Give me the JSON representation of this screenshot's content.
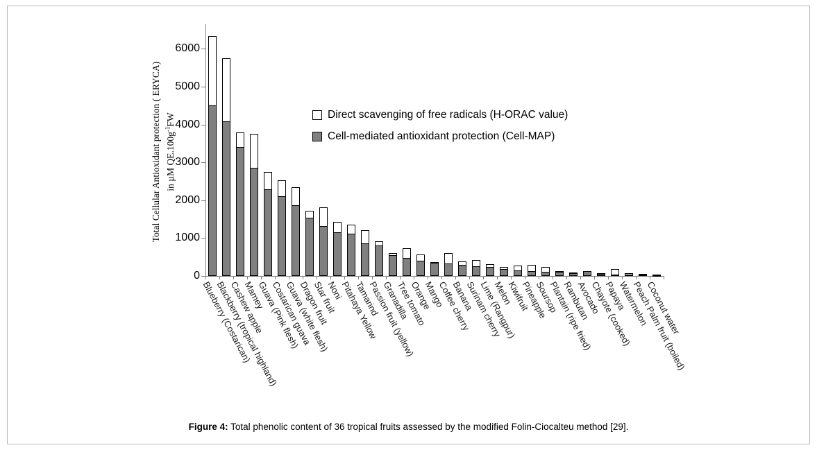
{
  "figure": {
    "caption_label": "Figure 4:",
    "caption_text": " Total phenolic content of 36 tropical fruits assessed by the modified Folin-Ciocalteu method [29]."
  },
  "colors": {
    "axis": "#7f7f7f",
    "bar_border": "#000000",
    "cellmap_fill": "#808080",
    "horac_fill": "#ffffff",
    "frame_border": "#b7b7b7"
  },
  "chart_data": {
    "type": "bar",
    "stacked": true,
    "grid": false,
    "legend_position": "inside-upper-middle",
    "ylabel_line1": "Total Cellular Antioxidant protection ( ERYCA)",
    "ylabel_line2_prefix": "in µM QE.100g",
    "ylabel_line2_sup": "-1",
    "ylabel_line2_suffix": "FW",
    "ylim": [
      0,
      6000
    ],
    "yticks": [
      0,
      1000,
      2000,
      3000,
      4000,
      5000,
      6000
    ],
    "categories": [
      "Blueberry (Costarican)",
      "Blackberry (tropical highland)",
      "Cashew apple",
      "Mamey",
      "Guava (Pink flesh)",
      "Costarican guava",
      "Guava (white flesh)",
      "Dragon fruit",
      "Star fruit",
      "Noni",
      "Pitahaya Yellow",
      "Tamarind",
      "Passion fruit (yellow)",
      "Granadilla",
      "Tree tomato",
      "Orange",
      "Mango",
      "Coffee cherry",
      "Banana",
      "Surinam cherry",
      "Lime (Rangpur)",
      "Melon",
      "Kiwifruit",
      "Pineapple",
      "Soursop",
      "Plantain (ripe fried)",
      "Rambutan",
      "Avocado",
      "Chayote (cooked)",
      "Papaya",
      "Watermelon",
      "Peach Palm fruit (boiled)",
      "Coconut water"
    ],
    "series": [
      {
        "name": "Direct scavenging of free radicals (H-ORAC value)",
        "color": "#ffffff",
        "values": [
          1840,
          1680,
          390,
          900,
          465,
          430,
          470,
          170,
          500,
          280,
          245,
          350,
          105,
          50,
          245,
          150,
          25,
          275,
          90,
          165,
          90,
          50,
          125,
          150,
          125,
          15,
          20,
          35,
          5,
          145,
          40,
          5,
          3
        ]
      },
      {
        "name": "Cell-mediated antioxidant protection (Cell-MAP)",
        "color": "#808080",
        "values": [
          4500,
          4080,
          3400,
          2860,
          2290,
          2100,
          1870,
          1545,
          1310,
          1155,
          1110,
          865,
          805,
          555,
          480,
          410,
          340,
          330,
          290,
          255,
          230,
          180,
          150,
          135,
          105,
          105,
          75,
          85,
          55,
          45,
          30,
          30,
          5
        ]
      }
    ]
  }
}
